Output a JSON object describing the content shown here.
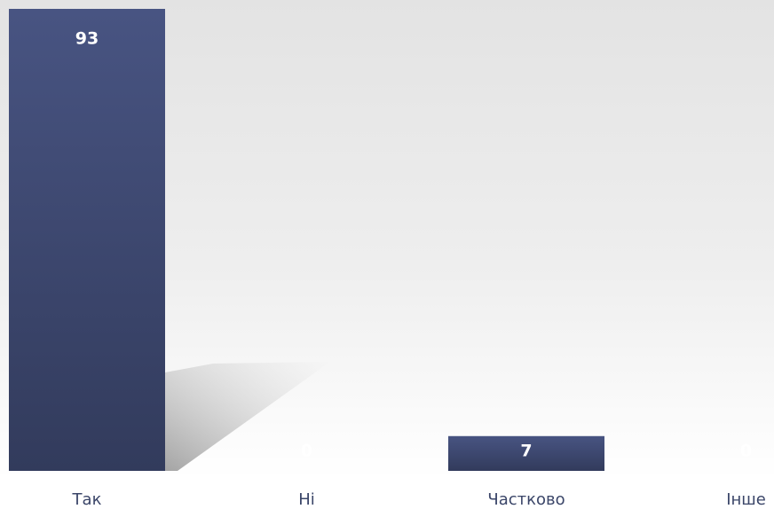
{
  "chart_data": {
    "type": "bar",
    "categories": [
      "Так",
      "Ні",
      "Частково",
      "Інше"
    ],
    "values": [
      93,
      0,
      7,
      0
    ],
    "color": "#3c4670"
  }
}
